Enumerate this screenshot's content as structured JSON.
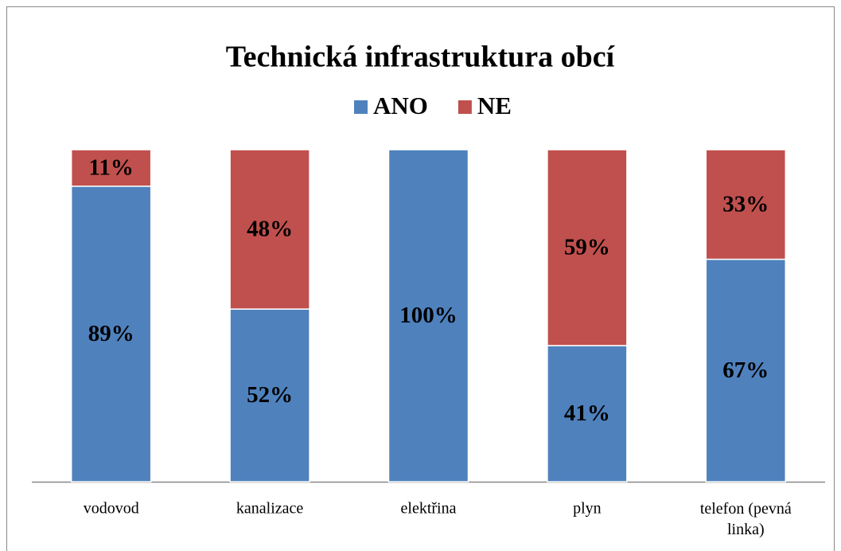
{
  "chart_data": {
    "type": "bar",
    "stacked": true,
    "title": "Technická infrastruktura obcí",
    "categories": [
      "vodovod",
      "kanalizace",
      "elektřina",
      "plyn",
      "telefon (pevná linka)"
    ],
    "series": [
      {
        "name": "ANO",
        "color": "#4f81bd",
        "values": [
          89,
          52,
          100,
          41,
          67
        ],
        "value_labels": [
          "89%",
          "52%",
          "100%",
          "41%",
          "67%"
        ]
      },
      {
        "name": "NE",
        "color": "#c0504d",
        "values": [
          11,
          48,
          0,
          59,
          33
        ],
        "value_labels": [
          "11%",
          "48%",
          null,
          "59%",
          "33%"
        ]
      }
    ],
    "ylim": [
      0,
      100
    ],
    "legend": "top"
  }
}
